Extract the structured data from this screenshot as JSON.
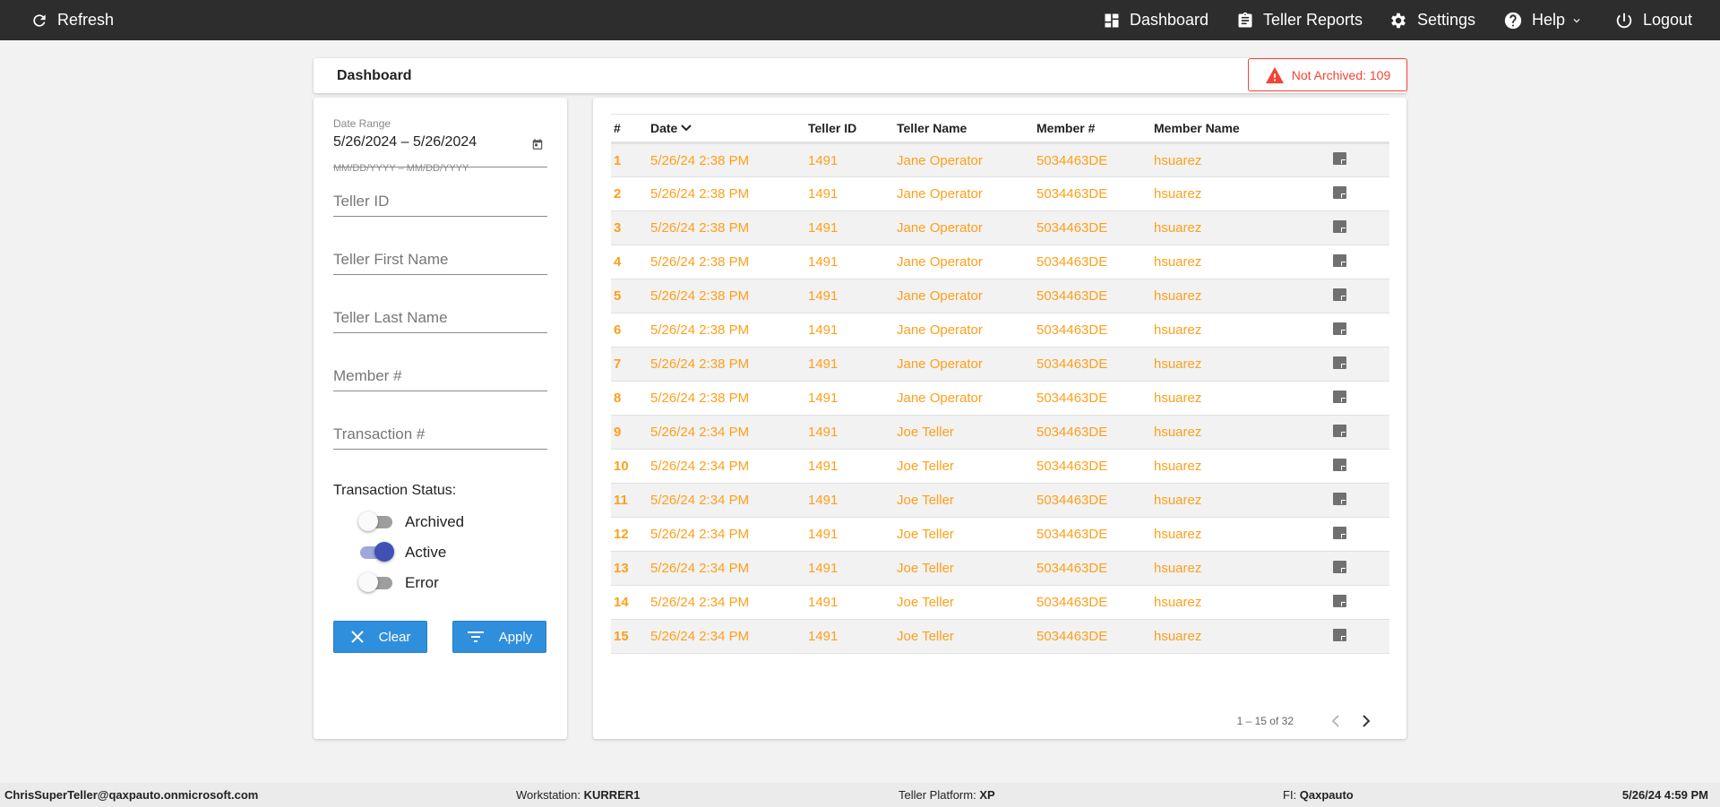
{
  "topbar": {
    "refresh": "Refresh",
    "dashboard": "Dashboard",
    "teller_reports": "Teller Reports",
    "settings": "Settings",
    "help": "Help",
    "logout": "Logout"
  },
  "dashboard": {
    "title": "Dashboard",
    "alert": "Not Archived: 109",
    "alert_color": "#f44336"
  },
  "filters": {
    "date_range_label": "Date Range",
    "date_range_value": "5/26/2024 – 5/26/2024",
    "date_hint": "MM/DD/YYYY – MM/DD/YYYY",
    "teller_id": "Teller ID",
    "teller_first": "Teller First Name",
    "teller_last": "Teller Last Name",
    "member": "Member #",
    "transaction": "Transaction #",
    "status_label": "Transaction Status:",
    "statuses": [
      {
        "label": "Archived",
        "on": false
      },
      {
        "label": "Active",
        "on": true
      },
      {
        "label": "Error",
        "on": false
      }
    ],
    "clear": "Clear",
    "apply": "Apply"
  },
  "table": {
    "headers": [
      "#",
      "Date",
      "Teller ID",
      "Teller Name",
      "Member #",
      "Member Name"
    ],
    "rows": [
      [
        "1",
        "5/26/24 2:38 PM",
        "1491",
        "Jane Operator",
        "5034463DE",
        "hsuarez"
      ],
      [
        "2",
        "5/26/24 2:38 PM",
        "1491",
        "Jane Operator",
        "5034463DE",
        "hsuarez"
      ],
      [
        "3",
        "5/26/24 2:38 PM",
        "1491",
        "Jane Operator",
        "5034463DE",
        "hsuarez"
      ],
      [
        "4",
        "5/26/24 2:38 PM",
        "1491",
        "Jane Operator",
        "5034463DE",
        "hsuarez"
      ],
      [
        "5",
        "5/26/24 2:38 PM",
        "1491",
        "Jane Operator",
        "5034463DE",
        "hsuarez"
      ],
      [
        "6",
        "5/26/24 2:38 PM",
        "1491",
        "Jane Operator",
        "5034463DE",
        "hsuarez"
      ],
      [
        "7",
        "5/26/24 2:38 PM",
        "1491",
        "Jane Operator",
        "5034463DE",
        "hsuarez"
      ],
      [
        "8",
        "5/26/24 2:38 PM",
        "1491",
        "Jane Operator",
        "5034463DE",
        "hsuarez"
      ],
      [
        "9",
        "5/26/24 2:34 PM",
        "1491",
        "Joe Teller",
        "5034463DE",
        "hsuarez"
      ],
      [
        "10",
        "5/26/24 2:34 PM",
        "1491",
        "Joe Teller",
        "5034463DE",
        "hsuarez"
      ],
      [
        "11",
        "5/26/24 2:34 PM",
        "1491",
        "Joe Teller",
        "5034463DE",
        "hsuarez"
      ],
      [
        "12",
        "5/26/24 2:34 PM",
        "1491",
        "Joe Teller",
        "5034463DE",
        "hsuarez"
      ],
      [
        "13",
        "5/26/24 2:34 PM",
        "1491",
        "Joe Teller",
        "5034463DE",
        "hsuarez"
      ],
      [
        "14",
        "5/26/24 2:34 PM",
        "1491",
        "Joe Teller",
        "5034463DE",
        "hsuarez"
      ],
      [
        "15",
        "5/26/24 2:34 PM",
        "1491",
        "Joe Teller",
        "5034463DE",
        "hsuarez"
      ]
    ],
    "row_text_color": "#ff9f1a",
    "pagination": "1 – 15 of 32"
  },
  "footer": {
    "user": "ChrisSuperTeller@qaxpauto.onmicrosoft.com",
    "workstation_label": "Workstation:",
    "workstation": "KURRER1",
    "platform_label": "Teller Platform:",
    "platform": "XP",
    "fi_label": "FI:",
    "fi": "Qaxpauto",
    "datetime": "5/26/24 4:59 PM"
  }
}
